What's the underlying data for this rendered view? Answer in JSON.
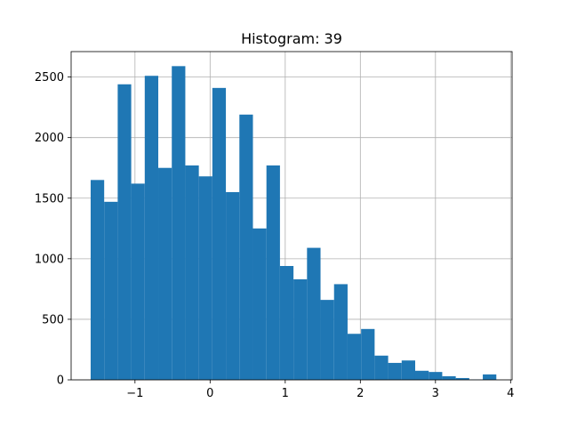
{
  "chart_data": {
    "type": "bar",
    "subtype": "histogram",
    "title": "Histogram: 39",
    "xlabel": "",
    "ylabel": "",
    "xlim": [
      -1.85,
      4.02
    ],
    "ylim": [
      0,
      2710
    ],
    "grid": true,
    "bar_color": "#1f77b4",
    "bins": [
      {
        "x0": -1.59,
        "x1": -1.41,
        "count": 1650
      },
      {
        "x0": -1.41,
        "x1": -1.23,
        "count": 1470
      },
      {
        "x0": -1.23,
        "x1": -1.05,
        "count": 2440
      },
      {
        "x0": -1.05,
        "x1": -0.87,
        "count": 1620
      },
      {
        "x0": -0.87,
        "x1": -0.69,
        "count": 2510
      },
      {
        "x0": -0.69,
        "x1": -0.51,
        "count": 1750
      },
      {
        "x0": -0.51,
        "x1": -0.33,
        "count": 2590
      },
      {
        "x0": -0.33,
        "x1": -0.15,
        "count": 1770
      },
      {
        "x0": -0.15,
        "x1": 0.03,
        "count": 1680
      },
      {
        "x0": 0.03,
        "x1": 0.21,
        "count": 2410
      },
      {
        "x0": 0.21,
        "x1": 0.39,
        "count": 1550
      },
      {
        "x0": 0.39,
        "x1": 0.57,
        "count": 2190
      },
      {
        "x0": 0.57,
        "x1": 0.75,
        "count": 1250
      },
      {
        "x0": 0.75,
        "x1": 0.93,
        "count": 1770
      },
      {
        "x0": 0.93,
        "x1": 1.11,
        "count": 940
      },
      {
        "x0": 1.11,
        "x1": 1.29,
        "count": 830
      },
      {
        "x0": 1.29,
        "x1": 1.47,
        "count": 1090
      },
      {
        "x0": 1.47,
        "x1": 1.65,
        "count": 660
      },
      {
        "x0": 1.65,
        "x1": 1.83,
        "count": 790
      },
      {
        "x0": 1.83,
        "x1": 2.01,
        "count": 380
      },
      {
        "x0": 2.01,
        "x1": 2.19,
        "count": 420
      },
      {
        "x0": 2.19,
        "x1": 2.37,
        "count": 200
      },
      {
        "x0": 2.37,
        "x1": 2.55,
        "count": 140
      },
      {
        "x0": 2.55,
        "x1": 2.73,
        "count": 160
      },
      {
        "x0": 2.73,
        "x1": 2.91,
        "count": 75
      },
      {
        "x0": 2.91,
        "x1": 3.09,
        "count": 65
      },
      {
        "x0": 3.09,
        "x1": 3.27,
        "count": 30
      },
      {
        "x0": 3.27,
        "x1": 3.45,
        "count": 15
      },
      {
        "x0": 3.45,
        "x1": 3.63,
        "count": 3
      },
      {
        "x0": 3.63,
        "x1": 3.81,
        "count": 45
      }
    ],
    "x_ticks": [
      {
        "value": -1,
        "label": "−1"
      },
      {
        "value": 0,
        "label": "0"
      },
      {
        "value": 1,
        "label": "1"
      },
      {
        "value": 2,
        "label": "2"
      },
      {
        "value": 3,
        "label": "3"
      },
      {
        "value": 4,
        "label": "4"
      }
    ],
    "y_ticks": [
      {
        "value": 0,
        "label": "0"
      },
      {
        "value": 500,
        "label": "500"
      },
      {
        "value": 1000,
        "label": "1000"
      },
      {
        "value": 1500,
        "label": "1500"
      },
      {
        "value": 2000,
        "label": "2000"
      },
      {
        "value": 2500,
        "label": "2500"
      }
    ]
  }
}
